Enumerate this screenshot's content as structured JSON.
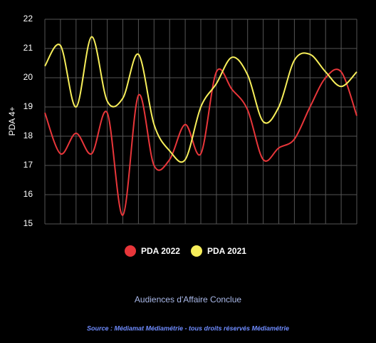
{
  "chart_data": {
    "type": "line",
    "ylabel": "PDA 4+",
    "xlabel": "Audiences d'Affaire Conclue",
    "source": "Source : Médiamat Médiamétrie - tous droits réservés Médiamétrie",
    "categories": [
      null,
      null,
      null,
      null,
      null,
      null,
      null,
      null,
      null,
      null,
      null,
      null,
      null,
      null,
      null,
      null,
      null,
      null,
      null,
      null,
      null
    ],
    "series": [
      {
        "name": "PDA 2022",
        "color": "#e8363a",
        "values": [
          18.8,
          17.4,
          18.1,
          17.4,
          18.8,
          15.3,
          19.4,
          17.0,
          17.2,
          18.4,
          17.4,
          20.2,
          19.6,
          18.9,
          17.2,
          17.6,
          17.9,
          19.0,
          20.0,
          20.2,
          18.7
        ]
      },
      {
        "name": "PDA 2021",
        "color": "#f7ee5a",
        "values": [
          20.4,
          21.1,
          19.0,
          21.4,
          19.2,
          19.3,
          20.8,
          18.4,
          17.5,
          17.2,
          19.0,
          19.8,
          20.7,
          20.1,
          18.5,
          19.0,
          20.6,
          20.8,
          20.2,
          19.7,
          20.2
        ]
      }
    ],
    "ylim": [
      15,
      22
    ],
    "yticks": [
      15,
      16,
      17,
      18,
      19,
      20,
      21,
      22
    ],
    "grid": true,
    "legend": "bottom"
  }
}
